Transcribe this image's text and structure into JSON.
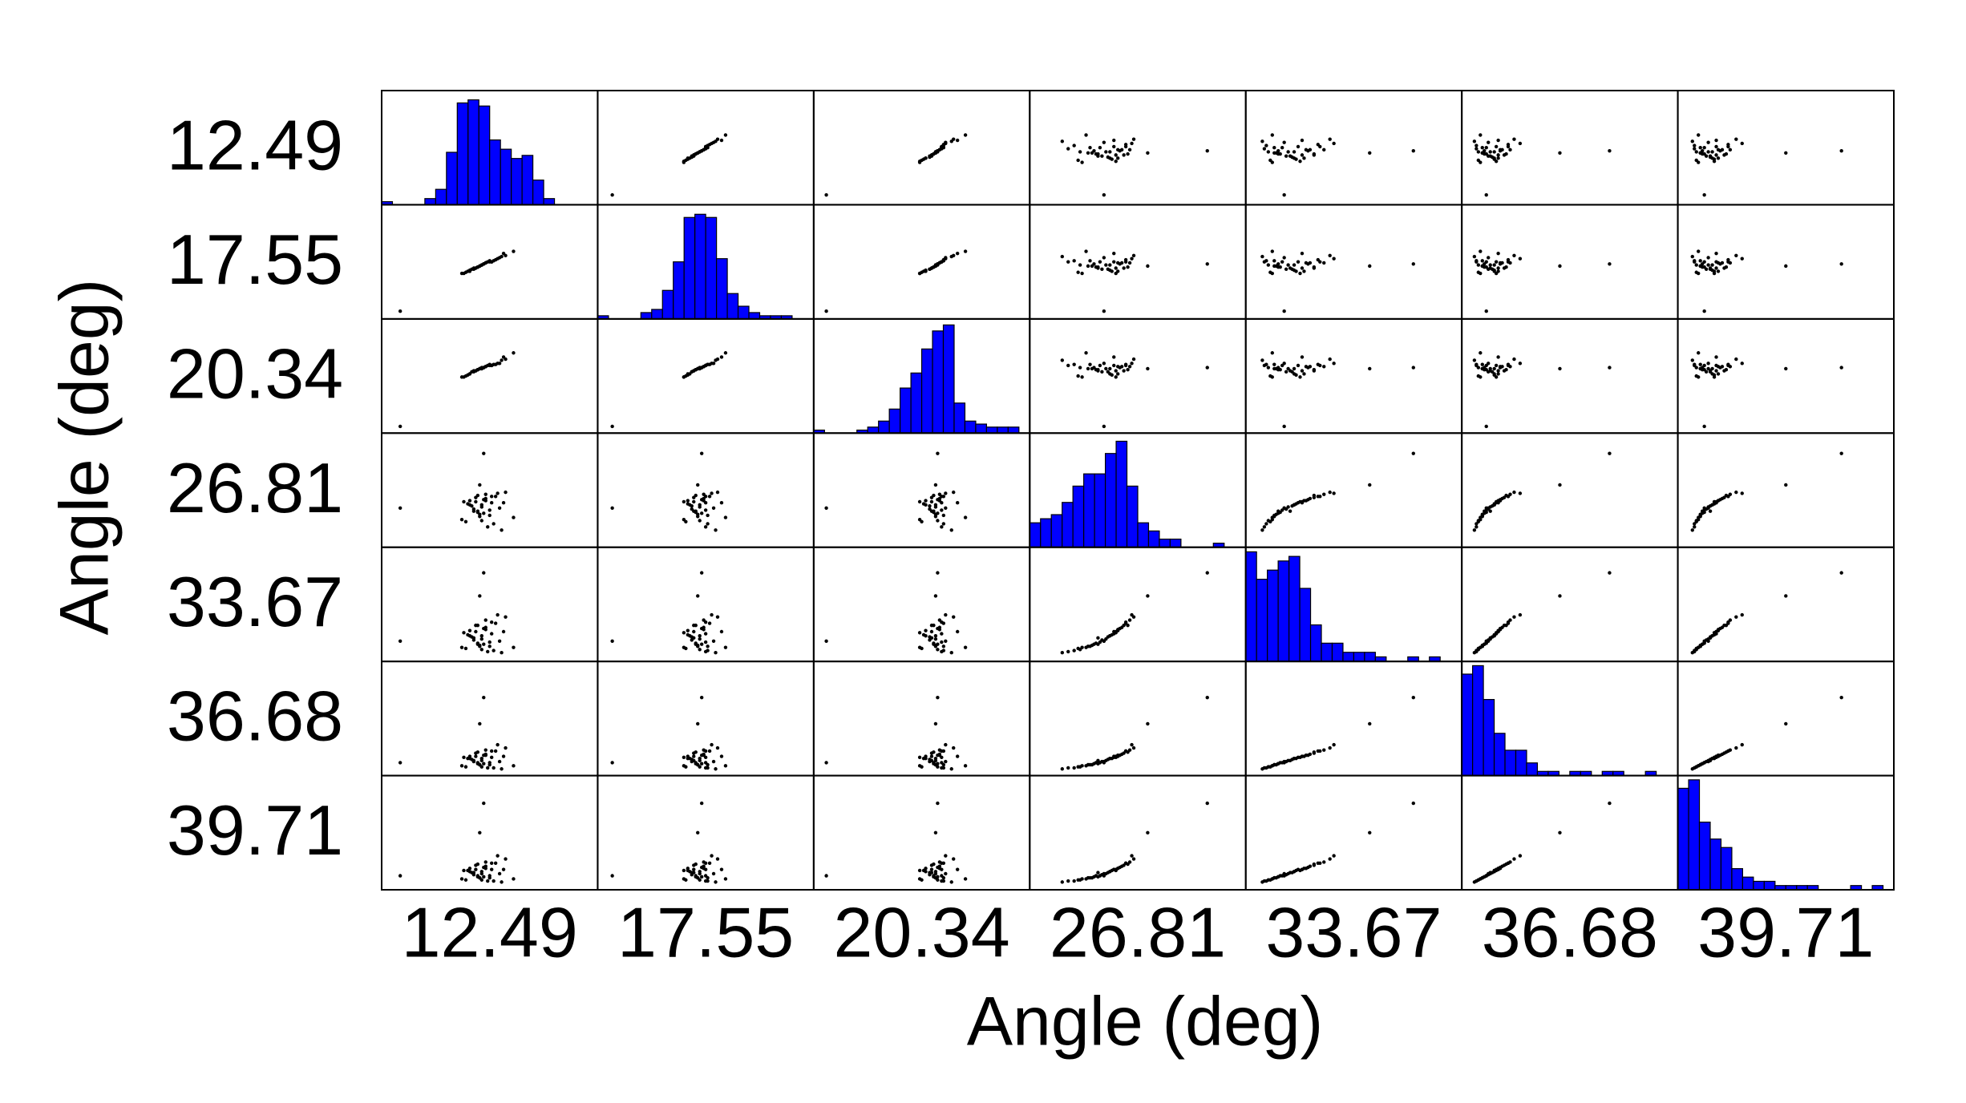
{
  "chart_data": {
    "type": "scatter_matrix",
    "x_label": "Angle (deg)",
    "y_label": "Angle (deg)",
    "hist_color": "#0000ff",
    "point_color": "#000000",
    "variables": [
      {
        "name": "12.49",
        "lim": [
          0,
          100
        ],
        "hist_ylim": [
          0,
          37
        ],
        "bins": [
          0,
          5,
          10,
          15,
          20,
          25,
          30,
          35,
          40,
          45,
          50,
          55,
          60,
          65,
          70,
          75,
          80,
          85,
          90,
          95,
          100
        ],
        "counts": [
          1,
          0,
          0,
          0,
          2,
          5,
          17,
          33,
          34,
          32,
          21,
          18,
          15,
          16,
          8,
          2,
          0,
          0,
          0,
          0
        ],
        "samples": [
          42,
          48,
          45,
          51,
          38,
          44,
          55,
          47,
          40,
          46,
          49,
          53,
          36,
          43,
          50,
          58,
          45,
          41,
          47,
          52,
          39,
          44,
          48,
          56,
          46,
          43,
          50,
          37,
          45,
          62,
          48,
          42,
          54,
          46,
          40,
          51,
          44,
          47,
          57,
          5
        ]
      },
      {
        "name": "17.55",
        "lim": [
          0,
          100
        ],
        "hist_ylim": [
          0,
          36
        ],
        "bins": [
          0,
          5,
          10,
          15,
          20,
          25,
          30,
          35,
          40,
          45,
          50,
          55,
          60,
          65,
          70,
          75,
          80,
          85,
          90,
          95,
          100
        ],
        "counts": [
          1,
          0,
          0,
          0,
          2,
          3,
          9,
          18,
          32,
          33,
          32,
          19,
          8,
          4,
          2,
          1,
          1,
          1,
          0,
          0
        ],
        "samples": [
          44,
          49,
          46,
          50,
          40,
          45,
          54,
          48,
          41,
          47,
          50,
          52,
          39,
          44,
          50,
          56,
          46,
          43,
          48,
          51,
          41,
          45,
          49,
          55,
          47,
          44,
          51,
          39,
          46,
          60,
          49,
          43,
          53,
          47,
          42,
          50,
          45,
          48,
          58,
          3
        ]
      },
      {
        "name": "20.34",
        "lim": [
          0,
          100
        ],
        "hist_ylim": [
          0,
          38
        ],
        "bins": [
          0,
          5,
          10,
          15,
          20,
          25,
          30,
          35,
          40,
          45,
          50,
          55,
          60,
          65,
          70,
          75,
          80,
          85,
          90,
          95,
          100
        ],
        "counts": [
          1,
          0,
          0,
          0,
          1,
          2,
          4,
          8,
          15,
          20,
          28,
          34,
          36,
          10,
          4,
          3,
          2,
          2,
          2,
          0
        ],
        "samples": [
          55,
          59,
          57,
          60,
          50,
          56,
          62,
          58,
          52,
          57,
          60,
          61,
          49,
          55,
          60,
          66,
          57,
          54,
          58,
          61,
          51,
          56,
          59,
          65,
          57,
          55,
          61,
          49,
          57,
          72,
          59,
          54,
          62,
          58,
          52,
          60,
          56,
          58,
          68,
          2
        ]
      },
      {
        "name": "26.81",
        "lim": [
          0,
          100
        ],
        "hist_ylim": [
          0,
          28
        ],
        "bins": [
          0,
          5,
          10,
          15,
          20,
          25,
          30,
          35,
          40,
          45,
          50,
          55,
          60,
          65,
          70,
          75,
          80,
          85,
          90,
          95,
          100
        ],
        "counts": [
          6,
          7,
          8,
          11,
          15,
          18,
          18,
          23,
          26,
          15,
          6,
          4,
          2,
          2,
          0,
          0,
          0,
          1,
          0,
          0
        ],
        "samples": [
          30,
          42,
          25,
          38,
          20,
          45,
          33,
          28,
          40,
          36,
          15,
          44,
          22,
          39,
          31,
          48,
          27,
          35,
          41,
          18,
          37,
          29,
          46,
          12,
          34,
          43,
          26,
          39,
          55,
          24,
          40,
          32,
          47,
          21,
          36,
          44,
          30,
          85,
          38,
          33
        ]
      },
      {
        "name": "33.67",
        "lim": [
          0,
          100
        ],
        "hist_ylim": [
          0,
          25
        ],
        "bins": [
          0,
          5,
          10,
          15,
          20,
          25,
          30,
          35,
          40,
          45,
          50,
          55,
          60,
          65,
          70,
          75,
          80,
          85,
          90,
          95,
          100
        ],
        "counts": [
          24,
          18,
          20,
          22,
          23,
          16,
          8,
          4,
          4,
          2,
          2,
          2,
          1,
          0,
          0,
          1,
          0,
          1,
          0,
          0
        ],
        "samples": [
          18,
          28,
          10,
          22,
          8,
          30,
          15,
          12,
          25,
          20,
          5,
          32,
          9,
          24,
          14,
          38,
          11,
          19,
          27,
          6,
          21,
          13,
          35,
          4,
          17,
          30,
          10,
          23,
          58,
          9,
          26,
          16,
          40,
          7,
          20,
          33,
          12,
          80,
          24,
          15
        ]
      },
      {
        "name": "36.68",
        "lim": [
          0,
          100
        ],
        "hist_ylim": [
          0,
          27
        ],
        "bins": [
          0,
          5,
          10,
          15,
          20,
          25,
          30,
          35,
          40,
          45,
          50,
          55,
          60,
          65,
          70,
          75,
          80,
          85,
          90,
          95,
          100
        ],
        "counts": [
          24,
          26,
          18,
          10,
          6,
          6,
          3,
          1,
          1,
          0,
          1,
          1,
          0,
          1,
          1,
          0,
          0,
          1,
          0,
          0
        ],
        "samples": [
          10,
          16,
          6,
          13,
          4,
          18,
          9,
          7,
          14,
          12,
          3,
          19,
          5,
          14,
          8,
          22,
          6,
          11,
          15,
          3,
          12,
          8,
          20,
          2,
          10,
          17,
          6,
          13,
          45,
          5,
          15,
          9,
          25,
          4,
          12,
          19,
          7,
          70,
          14,
          8
        ]
      },
      {
        "name": "39.71",
        "lim": [
          0,
          100
        ],
        "hist_ylim": [
          0,
          27
        ],
        "bins": [
          0,
          5,
          10,
          15,
          20,
          25,
          30,
          35,
          40,
          45,
          50,
          55,
          60,
          65,
          70,
          75,
          80,
          85,
          90,
          95,
          100
        ],
        "counts": [
          24,
          26,
          16,
          12,
          10,
          5,
          3,
          2,
          2,
          1,
          1,
          1,
          1,
          0,
          0,
          0,
          1,
          0,
          1,
          0
        ],
        "samples": [
          12,
          18,
          7,
          15,
          5,
          20,
          11,
          8,
          16,
          13,
          4,
          21,
          6,
          15,
          9,
          25,
          7,
          12,
          17,
          4,
          14,
          9,
          22,
          3,
          11,
          19,
          7,
          14,
          50,
          6,
          16,
          10,
          28,
          5,
          13,
          21,
          8,
          78,
          15,
          9
        ]
      }
    ]
  }
}
